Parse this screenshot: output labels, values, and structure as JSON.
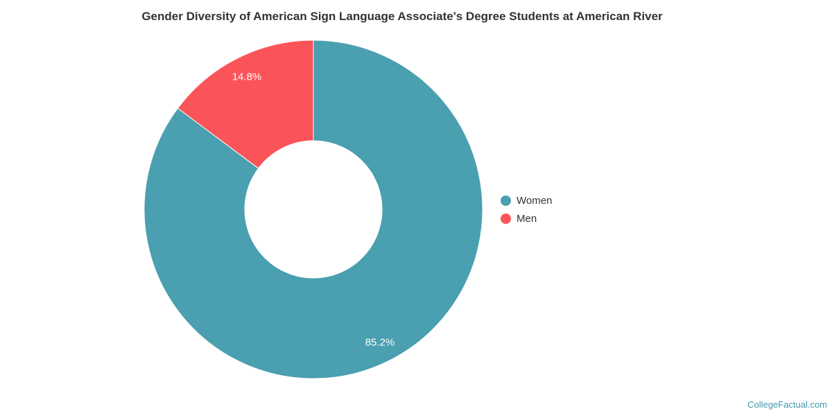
{
  "title": "Gender Diversity of American Sign Language Associate's Degree Students at American River",
  "watermark": "CollegeFactual.com",
  "legend": {
    "position": "right",
    "items": [
      {
        "label": "Women",
        "color": "#4a9fb0"
      },
      {
        "label": "Men",
        "color": "#fb5458"
      }
    ]
  },
  "chart_data": {
    "type": "pie",
    "subtype": "donut",
    "title": "Gender Diversity of American Sign Language Associate's Degree Students at American River",
    "categories": [
      "Women",
      "Men"
    ],
    "values": [
      85.2,
      14.8
    ],
    "data_labels": [
      "85.2%",
      "14.8%"
    ],
    "colors": [
      "#4a9fb0",
      "#fb5458"
    ],
    "start_angle_deg": 0,
    "direction": "clockwise",
    "inner_radius_ratio": 0.405,
    "border_color": "#ffffff",
    "data_label_color": "#ffffff",
    "legend_position": "right",
    "grid": false
  },
  "colors": {
    "background": "#ffffff",
    "title_text": "#333333",
    "legend_text": "#333333",
    "watermark_link": "#4299ab"
  }
}
